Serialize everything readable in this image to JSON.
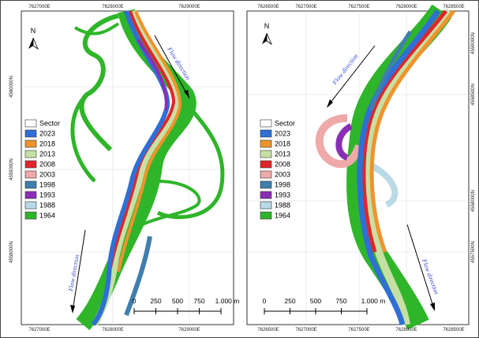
{
  "panels": [
    {
      "top_labels": [
        "7627000E",
        "7628000E",
        "7629000E"
      ],
      "bottom_labels": [
        "7627000E",
        "7628000E",
        "7629000E"
      ],
      "side_labels": [
        "4560000N",
        "4559000N",
        "4558000N"
      ],
      "north": "N",
      "flow_labels": [
        "Flow direction",
        "Flow direction"
      ],
      "legend": [
        {
          "label": "Sector",
          "color": "#ffffff"
        },
        {
          "label": "2023",
          "color": "#2f6fd6"
        },
        {
          "label": "2018",
          "color": "#f0932c"
        },
        {
          "label": "2013",
          "color": "#c6e0a4"
        },
        {
          "label": "2008",
          "color": "#e0262a"
        },
        {
          "label": "2003",
          "color": "#f0a9a9"
        },
        {
          "label": "1998",
          "color": "#3f7fae"
        },
        {
          "label": "1993",
          "color": "#8a2fb5"
        },
        {
          "label": "1988",
          "color": "#b9d9e6"
        },
        {
          "label": "1964",
          "color": "#2fb52a"
        }
      ],
      "scale": [
        "0",
        "250",
        "500",
        "750",
        "1.000 m"
      ]
    },
    {
      "top_labels": [
        "7626500E",
        "7627000E",
        "7627500E",
        "7628000E",
        "7628500E"
      ],
      "bottom_labels": [
        "7626500E",
        "7627000E",
        "7627500E",
        "7628000E",
        "7628500E"
      ],
      "side_labels": [
        "4559000N",
        "4558500N",
        "4558000N",
        "4557500N"
      ],
      "north": "N",
      "flow_labels": [
        "Flow direction",
        "Flow direction"
      ],
      "legend": [
        {
          "label": "Sector",
          "color": "#ffffff"
        },
        {
          "label": "2023",
          "color": "#2f6fd6"
        },
        {
          "label": "2018",
          "color": "#f0932c"
        },
        {
          "label": "2013",
          "color": "#c6e0a4"
        },
        {
          "label": "2008",
          "color": "#e0262a"
        },
        {
          "label": "2003",
          "color": "#f0a9a9"
        },
        {
          "label": "1998",
          "color": "#3f7fae"
        },
        {
          "label": "1993",
          "color": "#8a2fb5"
        },
        {
          "label": "1988",
          "color": "#b9d9e6"
        },
        {
          "label": "1964",
          "color": "#2fb52a"
        }
      ],
      "scale": [
        "0",
        "250",
        "500",
        "750",
        "1.000 m"
      ]
    }
  ]
}
